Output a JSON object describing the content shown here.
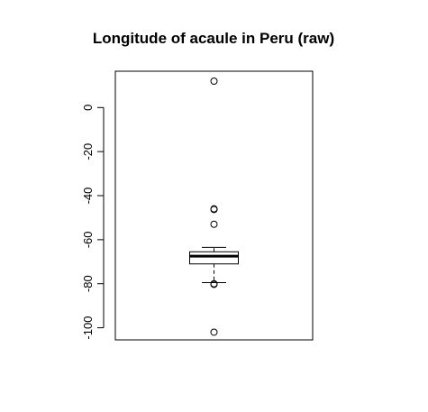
{
  "chart_data": {
    "type": "boxplot",
    "title": "Longitude of acaule in Peru (raw)",
    "xlabel": "",
    "ylabel": "",
    "ylim": [
      -105.5,
      16.5
    ],
    "yticks": [
      0,
      -20,
      -40,
      -60,
      -80,
      -100
    ],
    "grid": false,
    "box": {
      "lower_whisker": -79.5,
      "q1": -71,
      "median": -67.5,
      "q3": -65.5,
      "upper_whisker": -63.5
    },
    "outliers": [
      12,
      -46,
      -46.3,
      -53,
      -80,
      -80.3,
      -102
    ]
  }
}
